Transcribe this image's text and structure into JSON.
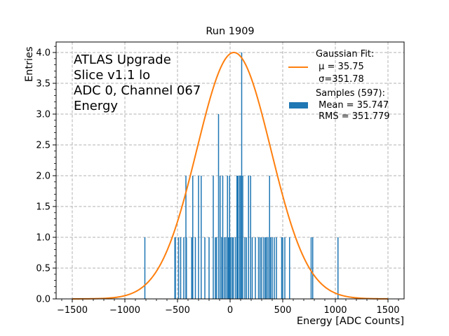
{
  "chart_data": {
    "type": "bar",
    "title": "Run 1909",
    "xlabel": "Energy [ADC Counts]",
    "ylabel": "Entries",
    "xlim": [
      -1650,
      1650
    ],
    "ylim": [
      0,
      4.2
    ],
    "grid": true,
    "x_ticks": [
      -1500,
      -1000,
      -500,
      0,
      500,
      1000,
      1500
    ],
    "x_tick_labels": [
      "−1500",
      "−1000",
      "−500",
      "0",
      "500",
      "1000",
      "1500"
    ],
    "y_ticks": [
      0.0,
      0.5,
      1.0,
      1.5,
      2.0,
      2.5,
      3.0,
      3.5,
      4.0
    ],
    "y_tick_labels": [
      "0.0",
      "0.5",
      "1.0",
      "1.5",
      "2.0",
      "2.5",
      "3.0",
      "3.5",
      "4.0"
    ],
    "annotation_lines": [
      "ATLAS Upgrade",
      "Slice v1.1 lo",
      "ADC 0, Channel 067",
      "Energy"
    ],
    "legend_position": "top-right",
    "series": [
      {
        "name": "Samples (597)",
        "kind": "histogram",
        "color": "#1f77b4",
        "bin_width": 10,
        "legend_lines": [
          "Samples (597):",
          " Mean = 35.747",
          " RMS = 351.779"
        ],
        "bins": [
          {
            "x": -810,
            "count": 1
          },
          {
            "x": -525,
            "count": 1
          },
          {
            "x": -520,
            "count": 1
          },
          {
            "x": -490,
            "count": 1
          },
          {
            "x": -470,
            "count": 1
          },
          {
            "x": -440,
            "count": 1
          },
          {
            "x": -420,
            "count": 2
          },
          {
            "x": -415,
            "count": 1
          },
          {
            "x": -365,
            "count": 1
          },
          {
            "x": -355,
            "count": 2
          },
          {
            "x": -330,
            "count": 1
          },
          {
            "x": -300,
            "count": 2
          },
          {
            "x": -275,
            "count": 2
          },
          {
            "x": -240,
            "count": 1
          },
          {
            "x": -200,
            "count": 1
          },
          {
            "x": -160,
            "count": 2
          },
          {
            "x": -140,
            "count": 1
          },
          {
            "x": -130,
            "count": 1
          },
          {
            "x": -110,
            "count": 3
          },
          {
            "x": -95,
            "count": 2
          },
          {
            "x": -80,
            "count": 1
          },
          {
            "x": -70,
            "count": 2
          },
          {
            "x": -55,
            "count": 1
          },
          {
            "x": -40,
            "count": 1
          },
          {
            "x": -25,
            "count": 2
          },
          {
            "x": -15,
            "count": 1
          },
          {
            "x": -5,
            "count": 2
          },
          {
            "x": 5,
            "count": 1
          },
          {
            "x": 20,
            "count": 1
          },
          {
            "x": 30,
            "count": 1
          },
          {
            "x": 50,
            "count": 1
          },
          {
            "x": 65,
            "count": 2
          },
          {
            "x": 75,
            "count": 2
          },
          {
            "x": 90,
            "count": 2
          },
          {
            "x": 100,
            "count": 2
          },
          {
            "x": 110,
            "count": 4
          },
          {
            "x": 120,
            "count": 2
          },
          {
            "x": 140,
            "count": 1
          },
          {
            "x": 155,
            "count": 1
          },
          {
            "x": 175,
            "count": 2
          },
          {
            "x": 195,
            "count": 2
          },
          {
            "x": 210,
            "count": 1
          },
          {
            "x": 240,
            "count": 1
          },
          {
            "x": 270,
            "count": 1
          },
          {
            "x": 285,
            "count": 1
          },
          {
            "x": 300,
            "count": 1
          },
          {
            "x": 320,
            "count": 1
          },
          {
            "x": 335,
            "count": 1
          },
          {
            "x": 345,
            "count": 1
          },
          {
            "x": 360,
            "count": 1
          },
          {
            "x": 375,
            "count": 2
          },
          {
            "x": 385,
            "count": 1
          },
          {
            "x": 400,
            "count": 1
          },
          {
            "x": 420,
            "count": 1
          },
          {
            "x": 440,
            "count": 1
          },
          {
            "x": 490,
            "count": 1
          },
          {
            "x": 500,
            "count": 1
          },
          {
            "x": 520,
            "count": 1
          },
          {
            "x": 565,
            "count": 1
          },
          {
            "x": 770,
            "count": 1
          },
          {
            "x": 785,
            "count": 1
          },
          {
            "x": 1025,
            "count": 1
          }
        ]
      },
      {
        "name": "Gaussian Fit",
        "kind": "line",
        "color": "#ff7f0e",
        "mu": 35.75,
        "sigma": 351.78,
        "amplitude": 4.0,
        "x_range": [
          -1500,
          1500
        ],
        "legend_lines": [
          "Gaussian Fit:",
          " μ = 35.75",
          " σ=351.78"
        ]
      }
    ]
  }
}
